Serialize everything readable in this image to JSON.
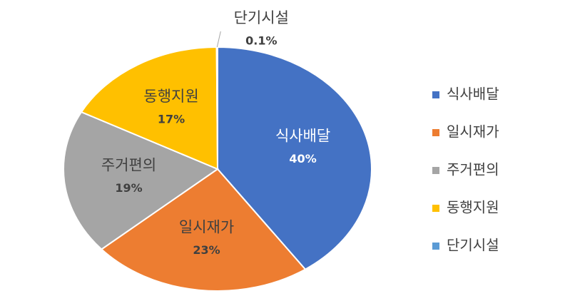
{
  "chart_data": {
    "type": "pie",
    "categories": [
      "식사배달",
      "일시재가",
      "주거편의",
      "동행지원",
      "단기시설"
    ],
    "values": [
      40,
      23,
      19,
      17,
      0.1
    ],
    "value_labels": [
      "40%",
      "23%",
      "19%",
      "17%",
      "0.1%"
    ],
    "colors": [
      "#4472c4",
      "#ed7d31",
      "#a5a5a5",
      "#ffc000",
      "#5b9bd5"
    ],
    "legend": "right"
  }
}
